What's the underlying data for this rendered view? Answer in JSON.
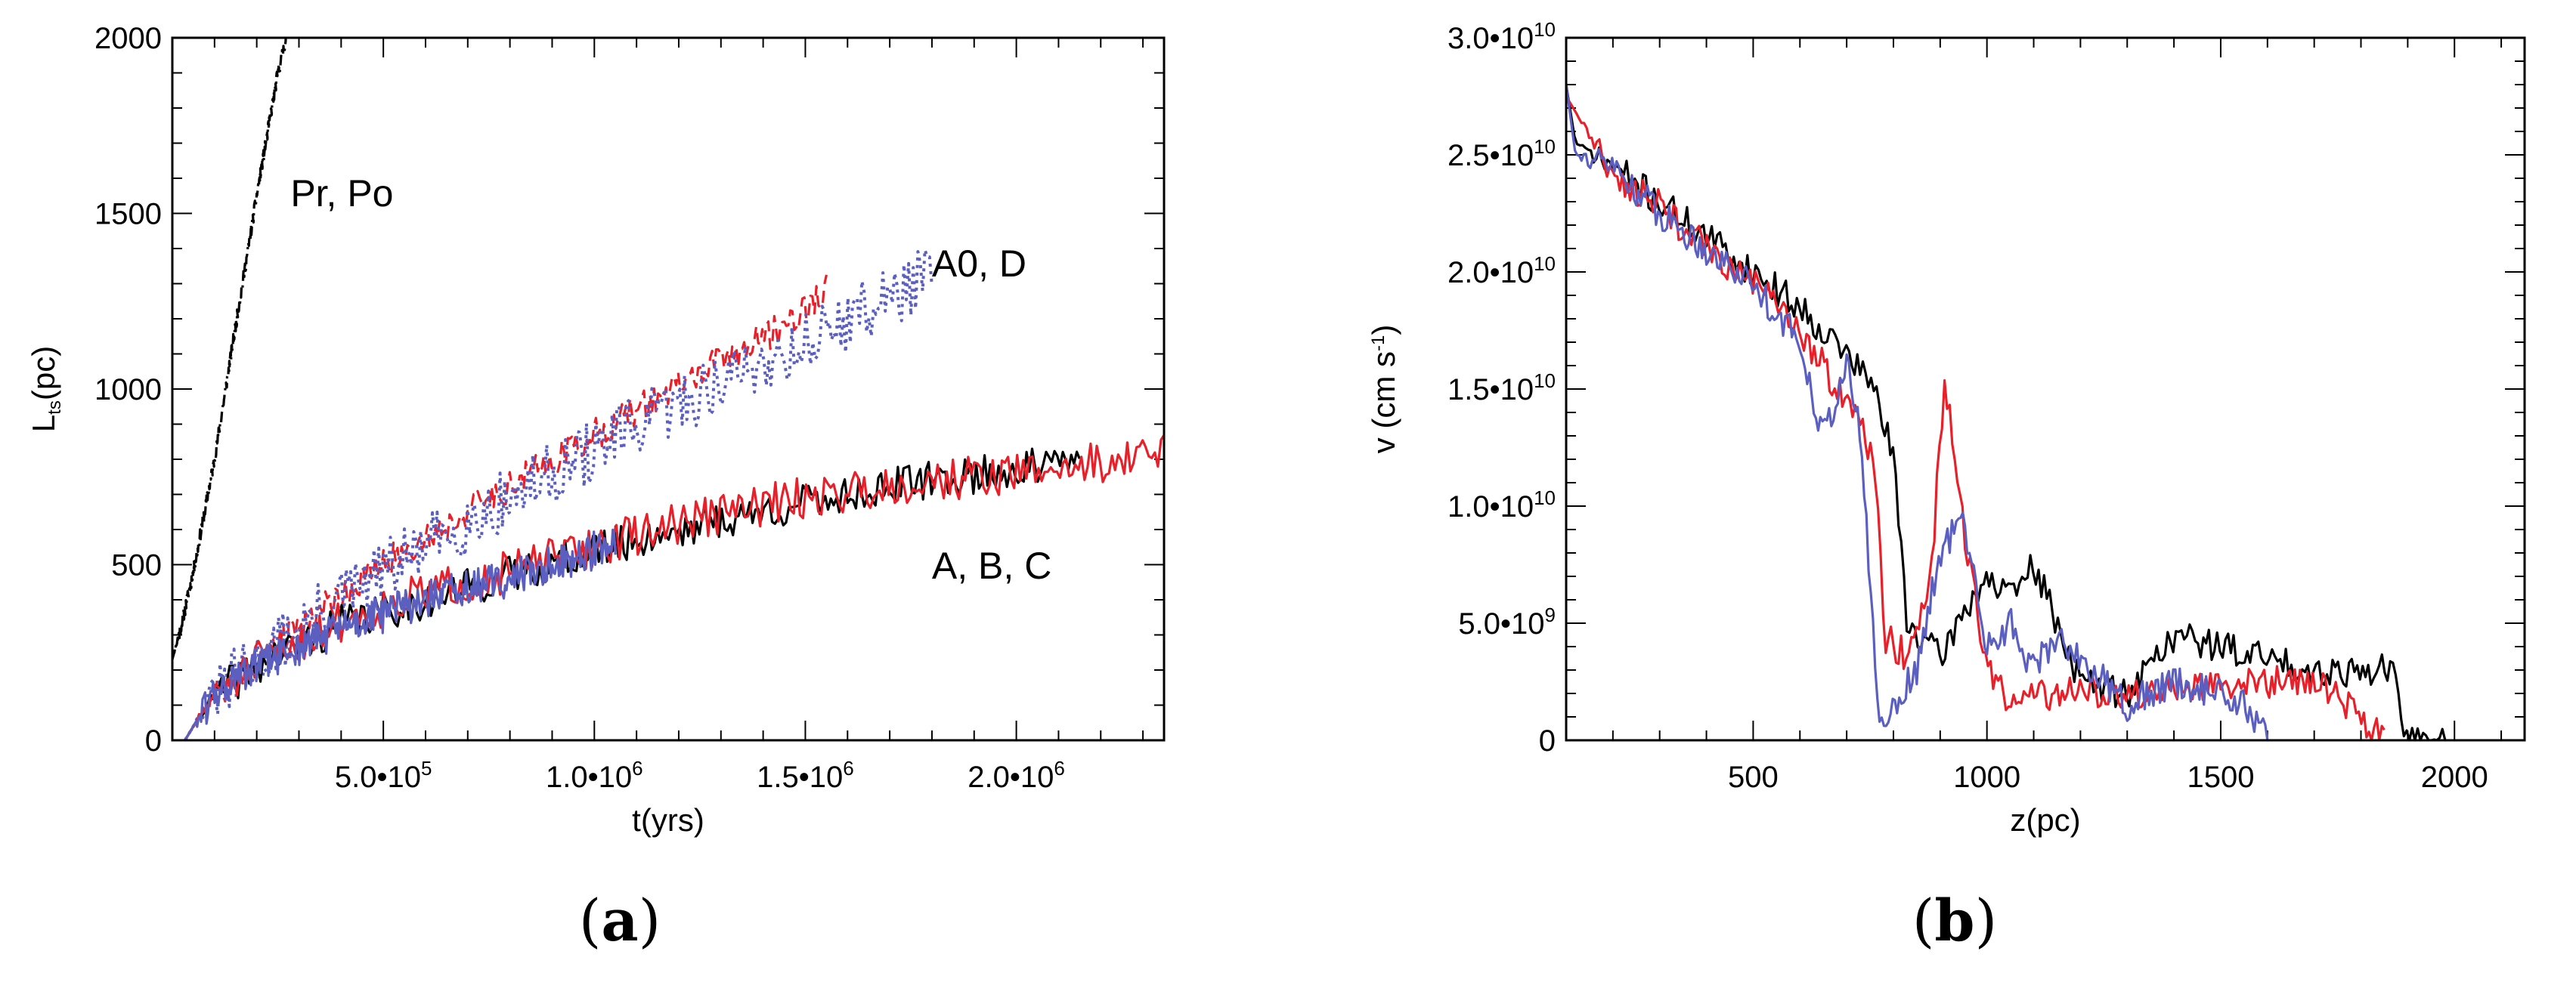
{
  "colors": {
    "black": "#000000",
    "red": "#e8202a",
    "blue": "#5b5fc0"
  },
  "chart_data": [
    {
      "type": "line",
      "panel": "(a)",
      "panel_letter": "a",
      "xlabel": "t(yrs)",
      "ylabel_main": "L",
      "ylabel_sub": "ts",
      "ylabel_rest": "(pc)",
      "xlim": [
        0,
        2350000
      ],
      "ylim": [
        0,
        2000
      ],
      "x_ticks": [
        {
          "value": 500000,
          "label": "5.0•10",
          "exp": "5"
        },
        {
          "value": 1000000,
          "label": "1.0•10",
          "exp": "6"
        },
        {
          "value": 1500000,
          "label": "1.5•10",
          "exp": "6"
        },
        {
          "value": 2000000,
          "label": "2.0•10",
          "exp": "6"
        }
      ],
      "y_ticks": [
        {
          "value": 0,
          "label": "0"
        },
        {
          "value": 500,
          "label": "500"
        },
        {
          "value": 1000,
          "label": "1000"
        },
        {
          "value": 1500,
          "label": "1500"
        },
        {
          "value": 2000,
          "label": "2000"
        }
      ],
      "annotations": [
        {
          "text": "Pr, Po",
          "x": 280000,
          "y": 1520
        },
        {
          "text": "A0, D",
          "x": 1800000,
          "y": 1320
        },
        {
          "text": "A, B, C",
          "x": 1800000,
          "y": 460
        }
      ],
      "series": [
        {
          "name": "Pr, Po",
          "color": "black",
          "style": "dashdot",
          "noise": 20,
          "seed": 11,
          "points": [
            [
              0,
              230
            ],
            [
              20000,
              320
            ],
            [
              50000,
              480
            ],
            [
              100000,
              800
            ],
            [
              150000,
              1180
            ],
            [
              200000,
              1550
            ],
            [
              250000,
              1900
            ],
            [
              270000,
              2000
            ]
          ]
        },
        {
          "name": "A0 (red dashed)",
          "color": "red",
          "style": "dashed",
          "noise": 45,
          "seed": 21,
          "points": [
            [
              30000,
              0
            ],
            [
              60000,
              60
            ],
            [
              100000,
              130
            ],
            [
              200000,
              220
            ],
            [
              300000,
              330
            ],
            [
              500000,
              500
            ],
            [
              700000,
              650
            ],
            [
              900000,
              800
            ],
            [
              1100000,
              940
            ],
            [
              1300000,
              1080
            ],
            [
              1450000,
              1180
            ],
            [
              1550000,
              1280
            ]
          ]
        },
        {
          "name": "D (blue dotted)",
          "color": "blue",
          "style": "dotted",
          "noise": 90,
          "seed": 31,
          "points": [
            [
              30000,
              0
            ],
            [
              60000,
              60
            ],
            [
              100000,
              130
            ],
            [
              200000,
              220
            ],
            [
              300000,
              320
            ],
            [
              500000,
              480
            ],
            [
              700000,
              620
            ],
            [
              900000,
              760
            ],
            [
              1100000,
              890
            ],
            [
              1300000,
              1020
            ],
            [
              1500000,
              1130
            ],
            [
              1650000,
              1230
            ],
            [
              1800000,
              1330
            ]
          ]
        },
        {
          "name": "A (black)",
          "color": "black",
          "style": "solid",
          "noise": 55,
          "seed": 41,
          "points": [
            [
              30000,
              0
            ],
            [
              60000,
              60
            ],
            [
              100000,
              130
            ],
            [
              200000,
              210
            ],
            [
              400000,
              330
            ],
            [
              600000,
              400
            ],
            [
              800000,
              470
            ],
            [
              1000000,
              540
            ],
            [
              1200000,
              600
            ],
            [
              1400000,
              650
            ],
            [
              1600000,
              700
            ],
            [
              1800000,
              740
            ],
            [
              2000000,
              770
            ],
            [
              2150000,
              790
            ]
          ]
        },
        {
          "name": "B (red)",
          "color": "red",
          "style": "solid",
          "noise": 60,
          "seed": 51,
          "points": [
            [
              30000,
              0
            ],
            [
              60000,
              60
            ],
            [
              100000,
              130
            ],
            [
              200000,
              220
            ],
            [
              400000,
              340
            ],
            [
              600000,
              420
            ],
            [
              800000,
              480
            ],
            [
              1000000,
              550
            ],
            [
              1200000,
              620
            ],
            [
              1400000,
              670
            ],
            [
              1600000,
              710
            ],
            [
              1800000,
              740
            ],
            [
              2000000,
              760
            ],
            [
              2200000,
              790
            ],
            [
              2350000,
              820
            ]
          ]
        },
        {
          "name": "C (blue)",
          "color": "blue",
          "style": "solid",
          "noise": 55,
          "seed": 61,
          "points": [
            [
              30000,
              0
            ],
            [
              60000,
              60
            ],
            [
              100000,
              130
            ],
            [
              200000,
              210
            ],
            [
              400000,
              320
            ],
            [
              600000,
              400
            ],
            [
              800000,
              460
            ],
            [
              950000,
              520
            ],
            [
              1050000,
              560
            ]
          ]
        }
      ]
    },
    {
      "type": "line",
      "panel": "(b)",
      "panel_letter": "b",
      "xlabel": "z(pc)",
      "ylabel_main": "v (cm s",
      "ylabel_sup": "-1",
      "ylabel_rest": ")",
      "xlim": [
        100,
        2150
      ],
      "ylim": [
        0,
        30000000000
      ],
      "x_ticks": [
        {
          "value": 500,
          "label": "500"
        },
        {
          "value": 1000,
          "label": "1000"
        },
        {
          "value": 1500,
          "label": "1500"
        },
        {
          "value": 2000,
          "label": "2000"
        }
      ],
      "y_ticks": [
        {
          "value": 0,
          "label": "0",
          "exp": ""
        },
        {
          "value": 5000000000,
          "label": "5.0•10",
          "exp": "9"
        },
        {
          "value": 10000000000,
          "label": "1.0•10",
          "exp": "10"
        },
        {
          "value": 15000000000,
          "label": "1.5•10",
          "exp": "10"
        },
        {
          "value": 20000000000,
          "label": "2.0•10",
          "exp": "10"
        },
        {
          "value": 25000000000,
          "label": "2.5•10",
          "exp": "10"
        },
        {
          "value": 30000000000,
          "label": "3.0•10",
          "exp": "10"
        }
      ],
      "series": [
        {
          "name": "black",
          "color": "black",
          "style": "solid",
          "noise": 700000000,
          "seed": 71,
          "points": [
            [
              100,
              28000000000
            ],
            [
              120,
              25500000000
            ],
            [
              200,
              24500000000
            ],
            [
              300,
              23000000000
            ],
            [
              400,
              21500000000
            ],
            [
              500,
              20000000000
            ],
            [
              600,
              18500000000
            ],
            [
              700,
              16500000000
            ],
            [
              760,
              15000000000
            ],
            [
              800,
              12000000000
            ],
            [
              830,
              5000000000
            ],
            [
              900,
              3500000000
            ],
            [
              950,
              5500000000
            ],
            [
              1000,
              7000000000
            ],
            [
              1050,
              6000000000
            ],
            [
              1100,
              7500000000
            ],
            [
              1150,
              5000000000
            ],
            [
              1200,
              2500000000
            ],
            [
              1300,
              2000000000
            ],
            [
              1400,
              4500000000
            ],
            [
              1500,
              4000000000
            ],
            [
              1600,
              3500000000
            ],
            [
              1700,
              3000000000
            ],
            [
              1800,
              3000000000
            ],
            [
              1870,
              3000000000
            ],
            [
              1890,
              0
            ],
            [
              1980,
              0
            ]
          ]
        },
        {
          "name": "red",
          "color": "red",
          "style": "solid",
          "noise": 700000000,
          "seed": 81,
          "points": [
            [
              100,
              27500000000
            ],
            [
              200,
              24200000000
            ],
            [
              300,
              22800000000
            ],
            [
              400,
              21000000000
            ],
            [
              500,
              19500000000
            ],
            [
              600,
              17500000000
            ],
            [
              700,
              14500000000
            ],
            [
              760,
              12000000000
            ],
            [
              780,
              4500000000
            ],
            [
              830,
              3500000000
            ],
            [
              880,
              7000000000
            ],
            [
              910,
              15500000000
            ],
            [
              950,
              9000000000
            ],
            [
              1000,
              3000000000
            ],
            [
              1050,
              1500000000
            ],
            [
              1100,
              2000000000
            ],
            [
              1300,
              2000000000
            ],
            [
              1500,
              2500000000
            ],
            [
              1700,
              2500000000
            ],
            [
              1800,
              1000000000
            ],
            [
              1850,
              0
            ]
          ]
        },
        {
          "name": "blue",
          "color": "blue",
          "style": "solid",
          "noise": 700000000,
          "seed": 91,
          "points": [
            [
              100,
              28000000000
            ],
            [
              120,
              25000000000
            ],
            [
              200,
              24500000000
            ],
            [
              300,
              22500000000
            ],
            [
              400,
              21000000000
            ],
            [
              500,
              19500000000
            ],
            [
              600,
              17000000000
            ],
            [
              650,
              13000000000
            ],
            [
              700,
              16000000000
            ],
            [
              730,
              13000000000
            ],
            [
              770,
              500000000
            ],
            [
              800,
              1500000000
            ],
            [
              850,
              3000000000
            ],
            [
              900,
              8000000000
            ],
            [
              950,
              9500000000
            ],
            [
              980,
              6000000000
            ],
            [
              1000,
              4000000000
            ],
            [
              1050,
              5000000000
            ],
            [
              1100,
              3000000000
            ],
            [
              1150,
              4500000000
            ],
            [
              1200,
              3500000000
            ],
            [
              1250,
              2500000000
            ],
            [
              1300,
              1500000000
            ],
            [
              1400,
              2500000000
            ],
            [
              1500,
              2000000000
            ],
            [
              1550,
              1500000000
            ],
            [
              1600,
              0
            ]
          ]
        }
      ]
    }
  ]
}
